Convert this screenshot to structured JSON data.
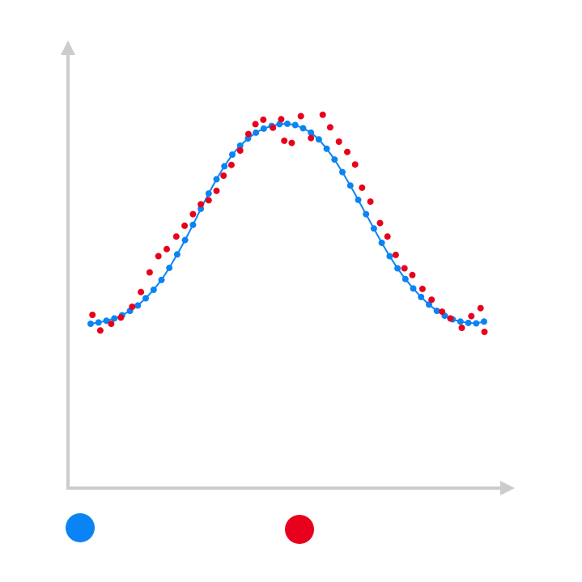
{
  "colors": {
    "axis": "#cccccc",
    "model": "#0a84f5",
    "observed": "#e8001c",
    "background": "#ffffff"
  },
  "chart_data": {
    "type": "scatter",
    "title": "",
    "xlabel": "",
    "ylabel": "",
    "grid": false,
    "xlim": [
      0,
      100
    ],
    "ylim": [
      0,
      100
    ],
    "legend": {
      "placement": "bottom",
      "entries": [
        {
          "color_key": "model"
        },
        {
          "color_key": "observed"
        }
      ]
    },
    "series": [
      {
        "color_key": "model",
        "style": "line+markers",
        "x": [
          5,
          6.8,
          8.6,
          10.4,
          12.2,
          14,
          15.8,
          17.6,
          19.4,
          21.2,
          23,
          24.8,
          26.6,
          28.4,
          30.2,
          32,
          33.8,
          35.6,
          37.4,
          39.2,
          41,
          42.8,
          44.6,
          46.4,
          48.2,
          50,
          51.8,
          53.6,
          55.4,
          57.2,
          59,
          60.8,
          62.6,
          64.4,
          66.2,
          68,
          69.8,
          71.6,
          73.4,
          75.2,
          77,
          78.8,
          80.6,
          82.4,
          84.2,
          86,
          87.8,
          89.6,
          91.4,
          93.2,
          95
        ],
        "y": [
          36.7,
          37,
          37.4,
          37.9,
          38.6,
          39.6,
          40.8,
          42.4,
          44.3,
          46.5,
          49.2,
          52.2,
          55.4,
          58.8,
          62.4,
          65.8,
          69,
          71.9,
          74.5,
          76.5,
          78.1,
          79.4,
          80.3,
          80.9,
          81.3,
          81.4,
          81.1,
          80.4,
          79.4,
          77.9,
          75.8,
          73.4,
          70.6,
          67.6,
          64.4,
          61.2,
          58,
          54.8,
          51.8,
          49.1,
          46.7,
          44.6,
          42.7,
          41,
          39.6,
          38.5,
          37.7,
          37.2,
          36.9,
          36.8,
          37.2
        ]
      },
      {
        "color_key": "observed",
        "style": "markers",
        "x": [
          5.4,
          7.2,
          9.7,
          11.9,
          14.5,
          16.5,
          18.5,
          20.5,
          22.4,
          24.6,
          26.5,
          28.4,
          30.2,
          32,
          33.8,
          35.4,
          37.2,
          39.2,
          41.1,
          42.7,
          44.5,
          46.7,
          48.6,
          49.3,
          51,
          53.1,
          55.4,
          58.1,
          59.8,
          61.8,
          63.7,
          65.5,
          67.1,
          69,
          71.2,
          72.9,
          74.8,
          76.8,
          78.6,
          80.9,
          83,
          85.4,
          87.3,
          89.9,
          92.1,
          94.2,
          95.1
        ],
        "y": [
          38.7,
          35.2,
          36.7,
          38.1,
          40.5,
          43.8,
          48.2,
          51.8,
          53.4,
          56.2,
          58.6,
          61.2,
          63.4,
          64.3,
          66.4,
          69.8,
          72.2,
          75.4,
          79.1,
          81.3,
          82.3,
          80.5,
          82.4,
          77.6,
          77.1,
          83.1,
          78.2,
          83.4,
          80.6,
          77.4,
          75.1,
          72.3,
          67.1,
          64,
          59.2,
          56.2,
          52.1,
          49.1,
          47.6,
          44.5,
          42.1,
          39.4,
          37.9,
          35.8,
          38.4,
          40.2,
          34.9
        ]
      }
    ]
  }
}
